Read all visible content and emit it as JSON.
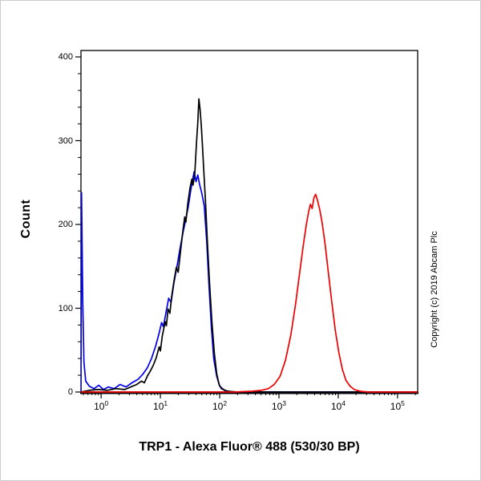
{
  "figure": {
    "background": "#ffffff",
    "border_color": "#cccccc"
  },
  "chart_data": {
    "type": "line",
    "subtype": "flow-cytometry-histogram",
    "title": "TRP1 - Alexa Fluor® 488 (530/30 BP)",
    "ylabel": "Count",
    "copyright": "Copyright (c) 2019 Abcam Plc",
    "x_scale": "log10",
    "x_tick_base": "10",
    "x_major_exponents": [
      0,
      1,
      2,
      3,
      4,
      5
    ],
    "x_range_log": [
      -0.34,
      5.34
    ],
    "ylim": [
      0,
      400
    ],
    "y_major_ticks": [
      0,
      100,
      200,
      300,
      400
    ],
    "y_minor_step": 20,
    "grid": false,
    "legend": "none",
    "axis_color": "#000000",
    "series": [
      {
        "name": "blue-control-histogram",
        "color": "#0000ee",
        "points": [
          [
            -0.34,
            0
          ],
          [
            -0.33,
            238
          ],
          [
            -0.31,
            110
          ],
          [
            -0.29,
            36
          ],
          [
            -0.26,
            13
          ],
          [
            -0.2,
            7
          ],
          [
            -0.12,
            4
          ],
          [
            -0.04,
            8
          ],
          [
            0.04,
            3
          ],
          [
            0.12,
            6
          ],
          [
            0.22,
            4
          ],
          [
            0.32,
            9
          ],
          [
            0.42,
            6
          ],
          [
            0.52,
            11
          ],
          [
            0.62,
            15
          ],
          [
            0.7,
            21
          ],
          [
            0.78,
            29
          ],
          [
            0.85,
            40
          ],
          [
            0.92,
            55
          ],
          [
            0.97,
            68
          ],
          [
            1.02,
            83
          ],
          [
            1.05,
            78
          ],
          [
            1.09,
            93
          ],
          [
            1.14,
            112
          ],
          [
            1.18,
            107
          ],
          [
            1.23,
            131
          ],
          [
            1.28,
            150
          ],
          [
            1.33,
            171
          ],
          [
            1.38,
            190
          ],
          [
            1.43,
            207
          ],
          [
            1.47,
            221
          ],
          [
            1.51,
            240
          ],
          [
            1.54,
            252
          ],
          [
            1.57,
            263
          ],
          [
            1.6,
            251
          ],
          [
            1.63,
            259
          ],
          [
            1.66,
            248
          ],
          [
            1.7,
            237
          ],
          [
            1.74,
            222
          ],
          [
            1.78,
            181
          ],
          [
            1.82,
            127
          ],
          [
            1.86,
            77
          ],
          [
            1.9,
            40
          ],
          [
            1.95,
            19
          ],
          [
            2.0,
            7
          ],
          [
            2.08,
            2
          ],
          [
            2.2,
            0
          ],
          [
            5.34,
            0
          ]
        ]
      },
      {
        "name": "black-control-histogram",
        "color": "#000000",
        "points": [
          [
            -0.34,
            0
          ],
          [
            -0.2,
            2
          ],
          [
            -0.05,
            3
          ],
          [
            0.1,
            2
          ],
          [
            0.25,
            4
          ],
          [
            0.4,
            3
          ],
          [
            0.5,
            6
          ],
          [
            0.6,
            9
          ],
          [
            0.68,
            13
          ],
          [
            0.73,
            11
          ],
          [
            0.78,
            19
          ],
          [
            0.83,
            25
          ],
          [
            0.88,
            32
          ],
          [
            0.93,
            41
          ],
          [
            0.98,
            54
          ],
          [
            1.0,
            49
          ],
          [
            1.03,
            66
          ],
          [
            1.08,
            84
          ],
          [
            1.1,
            79
          ],
          [
            1.13,
            99
          ],
          [
            1.16,
            94
          ],
          [
            1.19,
            114
          ],
          [
            1.23,
            133
          ],
          [
            1.27,
            149
          ],
          [
            1.3,
            143
          ],
          [
            1.34,
            168
          ],
          [
            1.38,
            193
          ],
          [
            1.41,
            209
          ],
          [
            1.43,
            203
          ],
          [
            1.46,
            224
          ],
          [
            1.5,
            244
          ],
          [
            1.53,
            254
          ],
          [
            1.55,
            247
          ],
          [
            1.58,
            261
          ],
          [
            1.61,
            299
          ],
          [
            1.63,
            321
          ],
          [
            1.65,
            350
          ],
          [
            1.67,
            337
          ],
          [
            1.69,
            318
          ],
          [
            1.71,
            293
          ],
          [
            1.73,
            266
          ],
          [
            1.76,
            228
          ],
          [
            1.79,
            183
          ],
          [
            1.83,
            128
          ],
          [
            1.87,
            83
          ],
          [
            1.91,
            46
          ],
          [
            1.95,
            22
          ],
          [
            1.99,
            9
          ],
          [
            2.03,
            4
          ],
          [
            2.13,
            1
          ],
          [
            2.3,
            0
          ],
          [
            5.34,
            0
          ]
        ]
      },
      {
        "name": "red-sample-histogram",
        "color": "#ee0000",
        "points": [
          [
            -0.34,
            0
          ],
          [
            2.25,
            0
          ],
          [
            2.55,
            1
          ],
          [
            2.7,
            2
          ],
          [
            2.82,
            4
          ],
          [
            2.92,
            9
          ],
          [
            3.02,
            19
          ],
          [
            3.11,
            38
          ],
          [
            3.2,
            68
          ],
          [
            3.28,
            105
          ],
          [
            3.35,
            143
          ],
          [
            3.41,
            175
          ],
          [
            3.46,
            199
          ],
          [
            3.5,
            215
          ],
          [
            3.53,
            224
          ],
          [
            3.56,
            219
          ],
          [
            3.59,
            232
          ],
          [
            3.62,
            236
          ],
          [
            3.65,
            229
          ],
          [
            3.69,
            217
          ],
          [
            3.73,
            201
          ],
          [
            3.78,
            176
          ],
          [
            3.83,
            145
          ],
          [
            3.89,
            108
          ],
          [
            3.95,
            74
          ],
          [
            4.01,
            47
          ],
          [
            4.07,
            27
          ],
          [
            4.13,
            14
          ],
          [
            4.2,
            7
          ],
          [
            4.27,
            3
          ],
          [
            4.37,
            1
          ],
          [
            4.5,
            0
          ],
          [
            5.34,
            0
          ]
        ]
      }
    ]
  }
}
